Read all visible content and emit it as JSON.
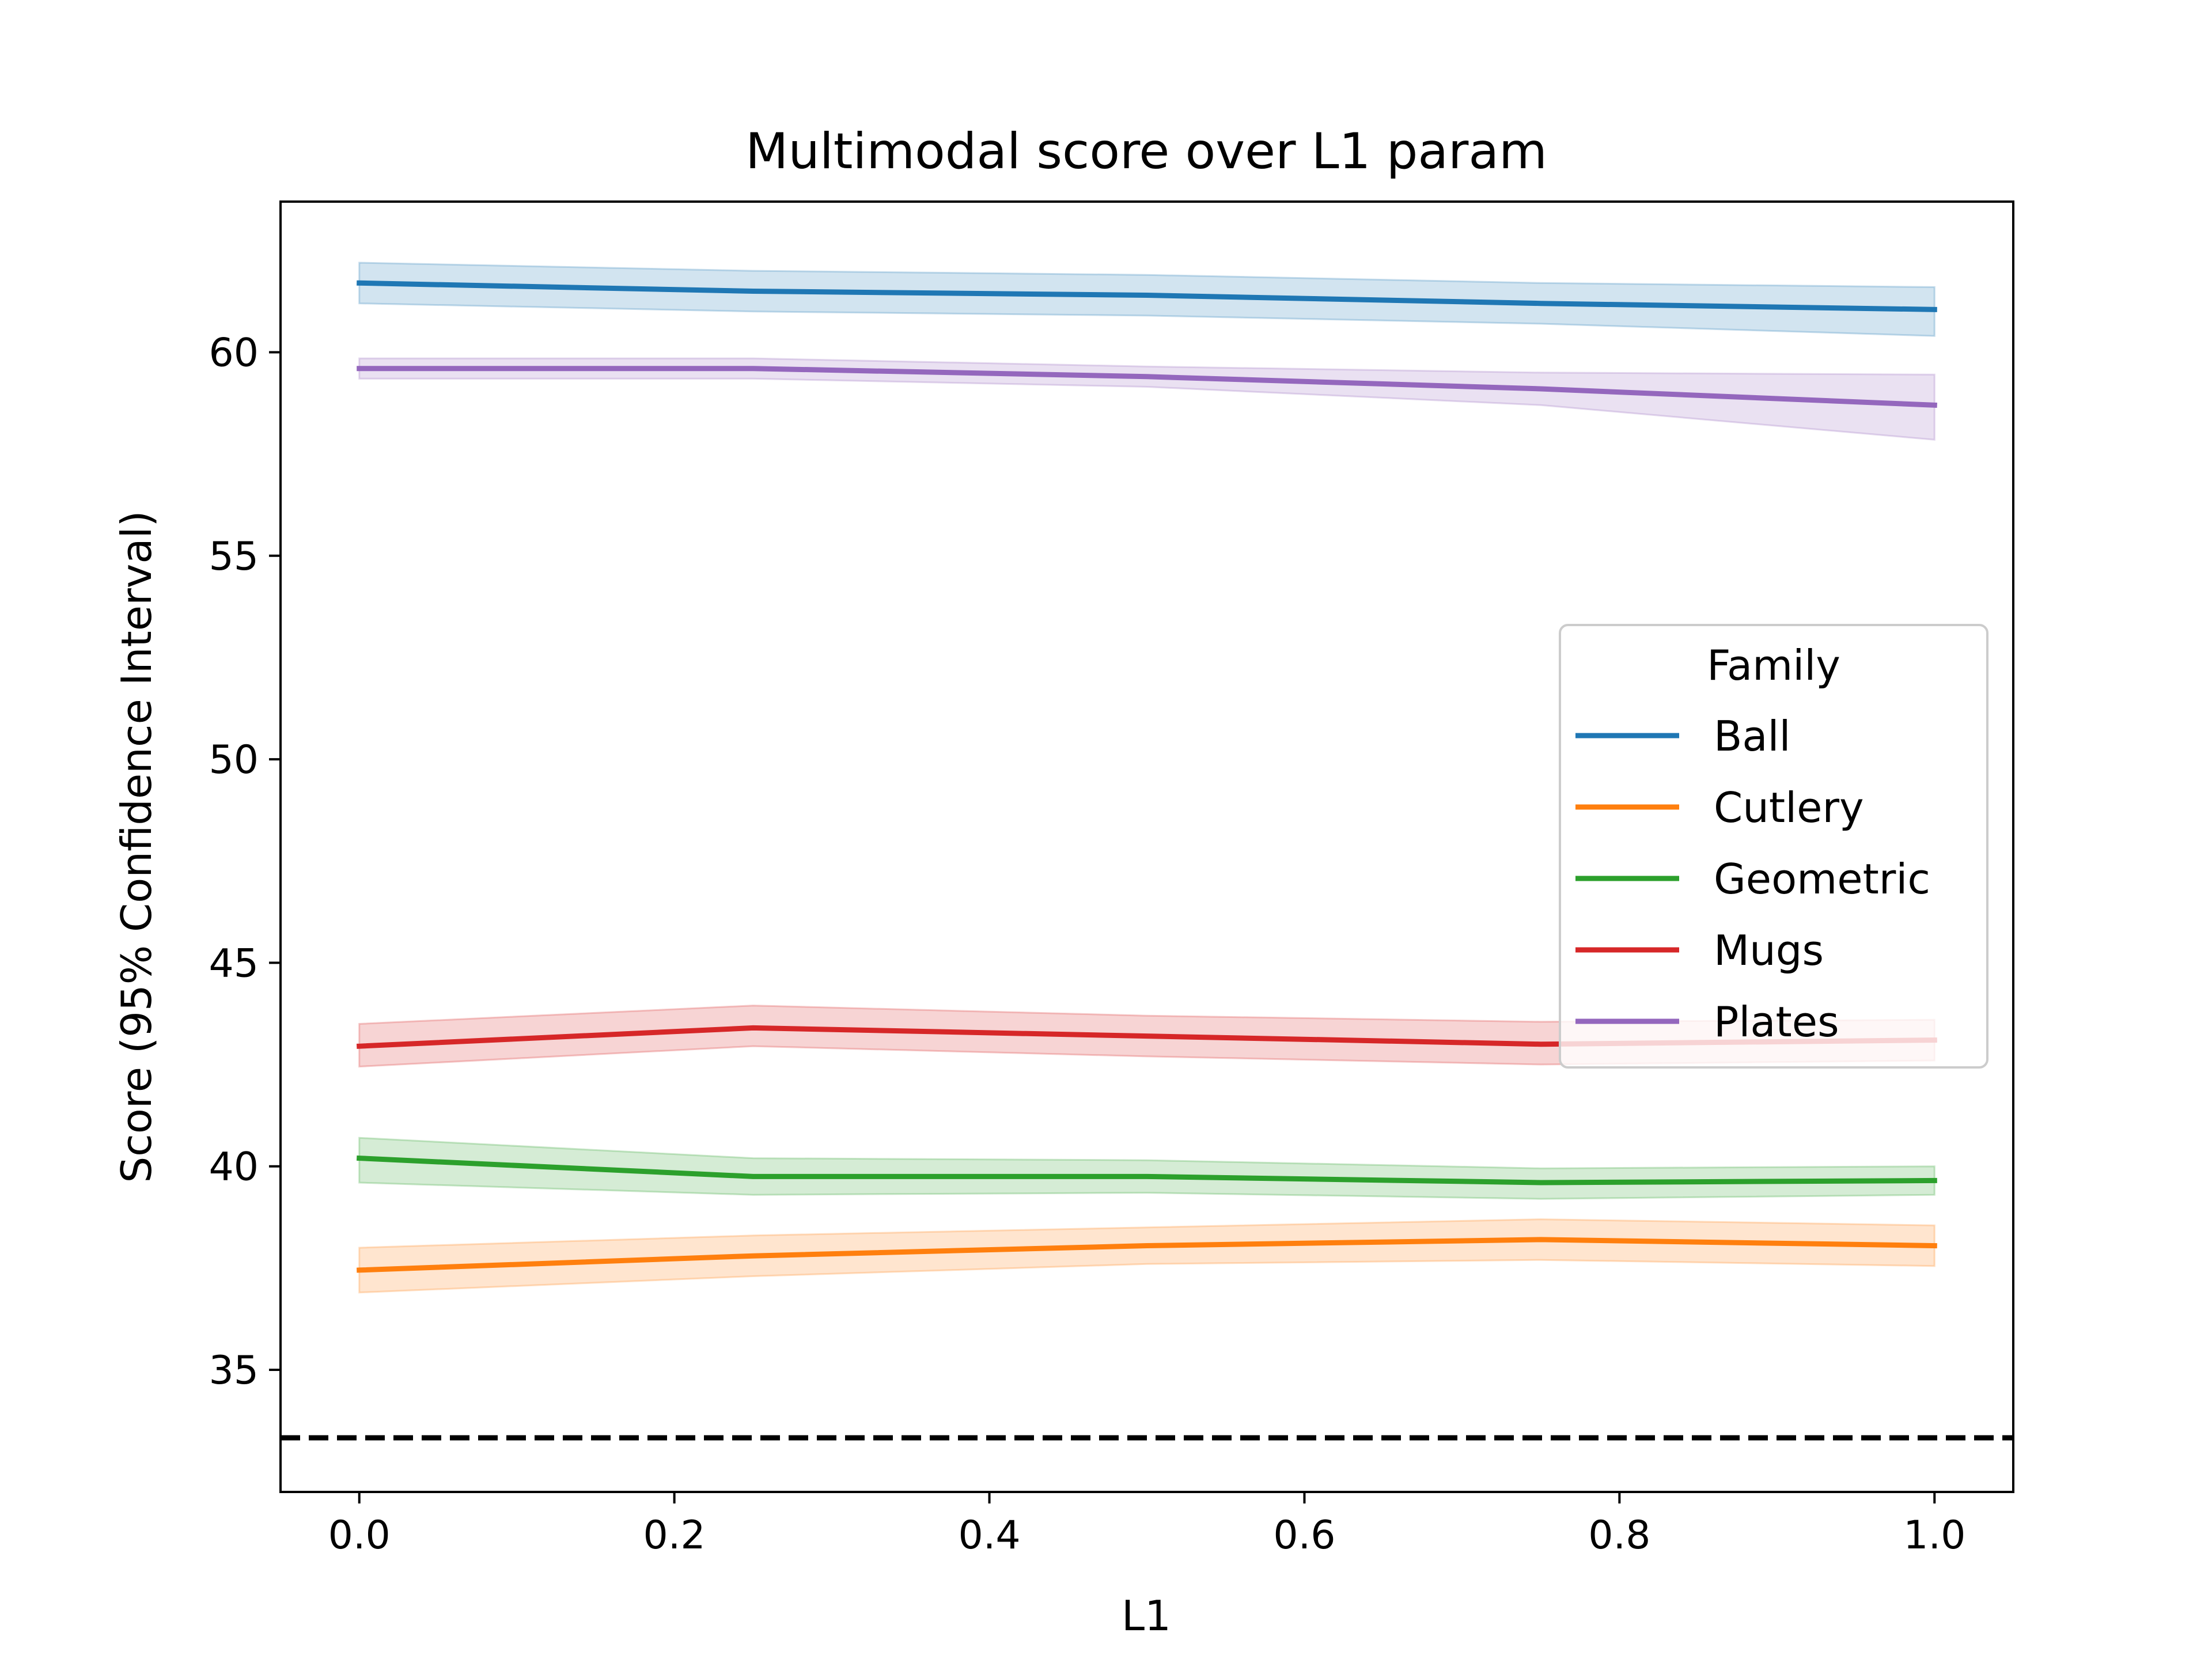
{
  "chart_data": {
    "type": "line",
    "title": "Multimodal score over L1 param",
    "xlabel": "L1",
    "ylabel": "Score (95% Confidence Interval)",
    "xlim": [
      -0.05,
      1.05
    ],
    "ylim": [
      32,
      63.7
    ],
    "xticks": [
      0.0,
      0.2,
      0.4,
      0.6,
      0.8,
      1.0
    ],
    "xtick_labels": [
      "0.0",
      "0.2",
      "0.4",
      "0.6",
      "0.8",
      "1.0"
    ],
    "yticks": [
      35,
      40,
      45,
      50,
      55,
      60
    ],
    "ytick_labels": [
      "35",
      "40",
      "45",
      "50",
      "55",
      "60"
    ],
    "grid": false,
    "legend": {
      "title": "Family",
      "placement": "center-right"
    },
    "x": [
      0.0,
      0.25,
      0.5,
      0.75,
      1.0
    ],
    "series": [
      {
        "name": "Ball",
        "color": "#1f77b4",
        "values": [
          61.7,
          61.5,
          61.4,
          61.2,
          61.05
        ],
        "ci_low": [
          61.2,
          61.0,
          60.9,
          60.7,
          60.4
        ],
        "ci_high": [
          62.2,
          62.0,
          61.9,
          61.7,
          61.6
        ]
      },
      {
        "name": "Cutlery",
        "color": "#ff7f0e",
        "values": [
          37.45,
          37.8,
          38.05,
          38.2,
          38.05
        ],
        "ci_low": [
          36.9,
          37.3,
          37.6,
          37.7,
          37.55
        ],
        "ci_high": [
          38.0,
          38.3,
          38.5,
          38.7,
          38.55
        ]
      },
      {
        "name": "Geometric",
        "color": "#2ca02c",
        "values": [
          40.2,
          39.75,
          39.75,
          39.6,
          39.65
        ],
        "ci_low": [
          39.6,
          39.3,
          39.35,
          39.2,
          39.3
        ],
        "ci_high": [
          40.7,
          40.2,
          40.15,
          39.95,
          40.0
        ]
      },
      {
        "name": "Mugs",
        "color": "#d62728",
        "values": [
          42.95,
          43.4,
          43.2,
          43.0,
          43.1
        ],
        "ci_low": [
          42.45,
          42.95,
          42.7,
          42.5,
          42.6
        ],
        "ci_high": [
          43.5,
          43.95,
          43.7,
          43.55,
          43.6
        ]
      },
      {
        "name": "Plates",
        "color": "#9467bd",
        "values": [
          59.6,
          59.6,
          59.4,
          59.1,
          58.7
        ],
        "ci_low": [
          59.35,
          59.35,
          59.15,
          58.7,
          57.85
        ],
        "ci_high": [
          59.85,
          59.85,
          59.65,
          59.5,
          59.45
        ]
      }
    ],
    "reference_line": {
      "y": 33.33,
      "style": "dashed",
      "color": "#000000"
    }
  }
}
